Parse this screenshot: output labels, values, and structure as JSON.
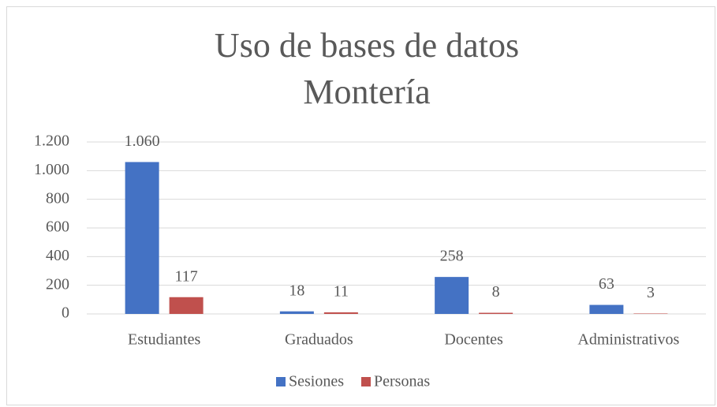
{
  "chart_data": {
    "type": "bar",
    "title": [
      "Uso de bases de datos",
      "Montería"
    ],
    "categories": [
      "Estudiantes",
      "Graduados",
      "Docentes",
      "Administrativos"
    ],
    "series": [
      {
        "name": "Sesiones",
        "color": "#4472c4",
        "values": [
          1060,
          18,
          258,
          63
        ],
        "value_labels": [
          "1.060",
          "18",
          "258",
          "63"
        ]
      },
      {
        "name": "Personas",
        "color": "#c0504d",
        "values": [
          117,
          11,
          8,
          3
        ]
      }
    ],
    "ylim": [
      0,
      1200
    ],
    "yticks": [
      0,
      200,
      400,
      600,
      800,
      {
        "value": 1000,
        "label": "1.000"
      },
      {
        "value": 1200,
        "label": "1.200"
      }
    ],
    "grid": true,
    "legend": "bottom"
  }
}
